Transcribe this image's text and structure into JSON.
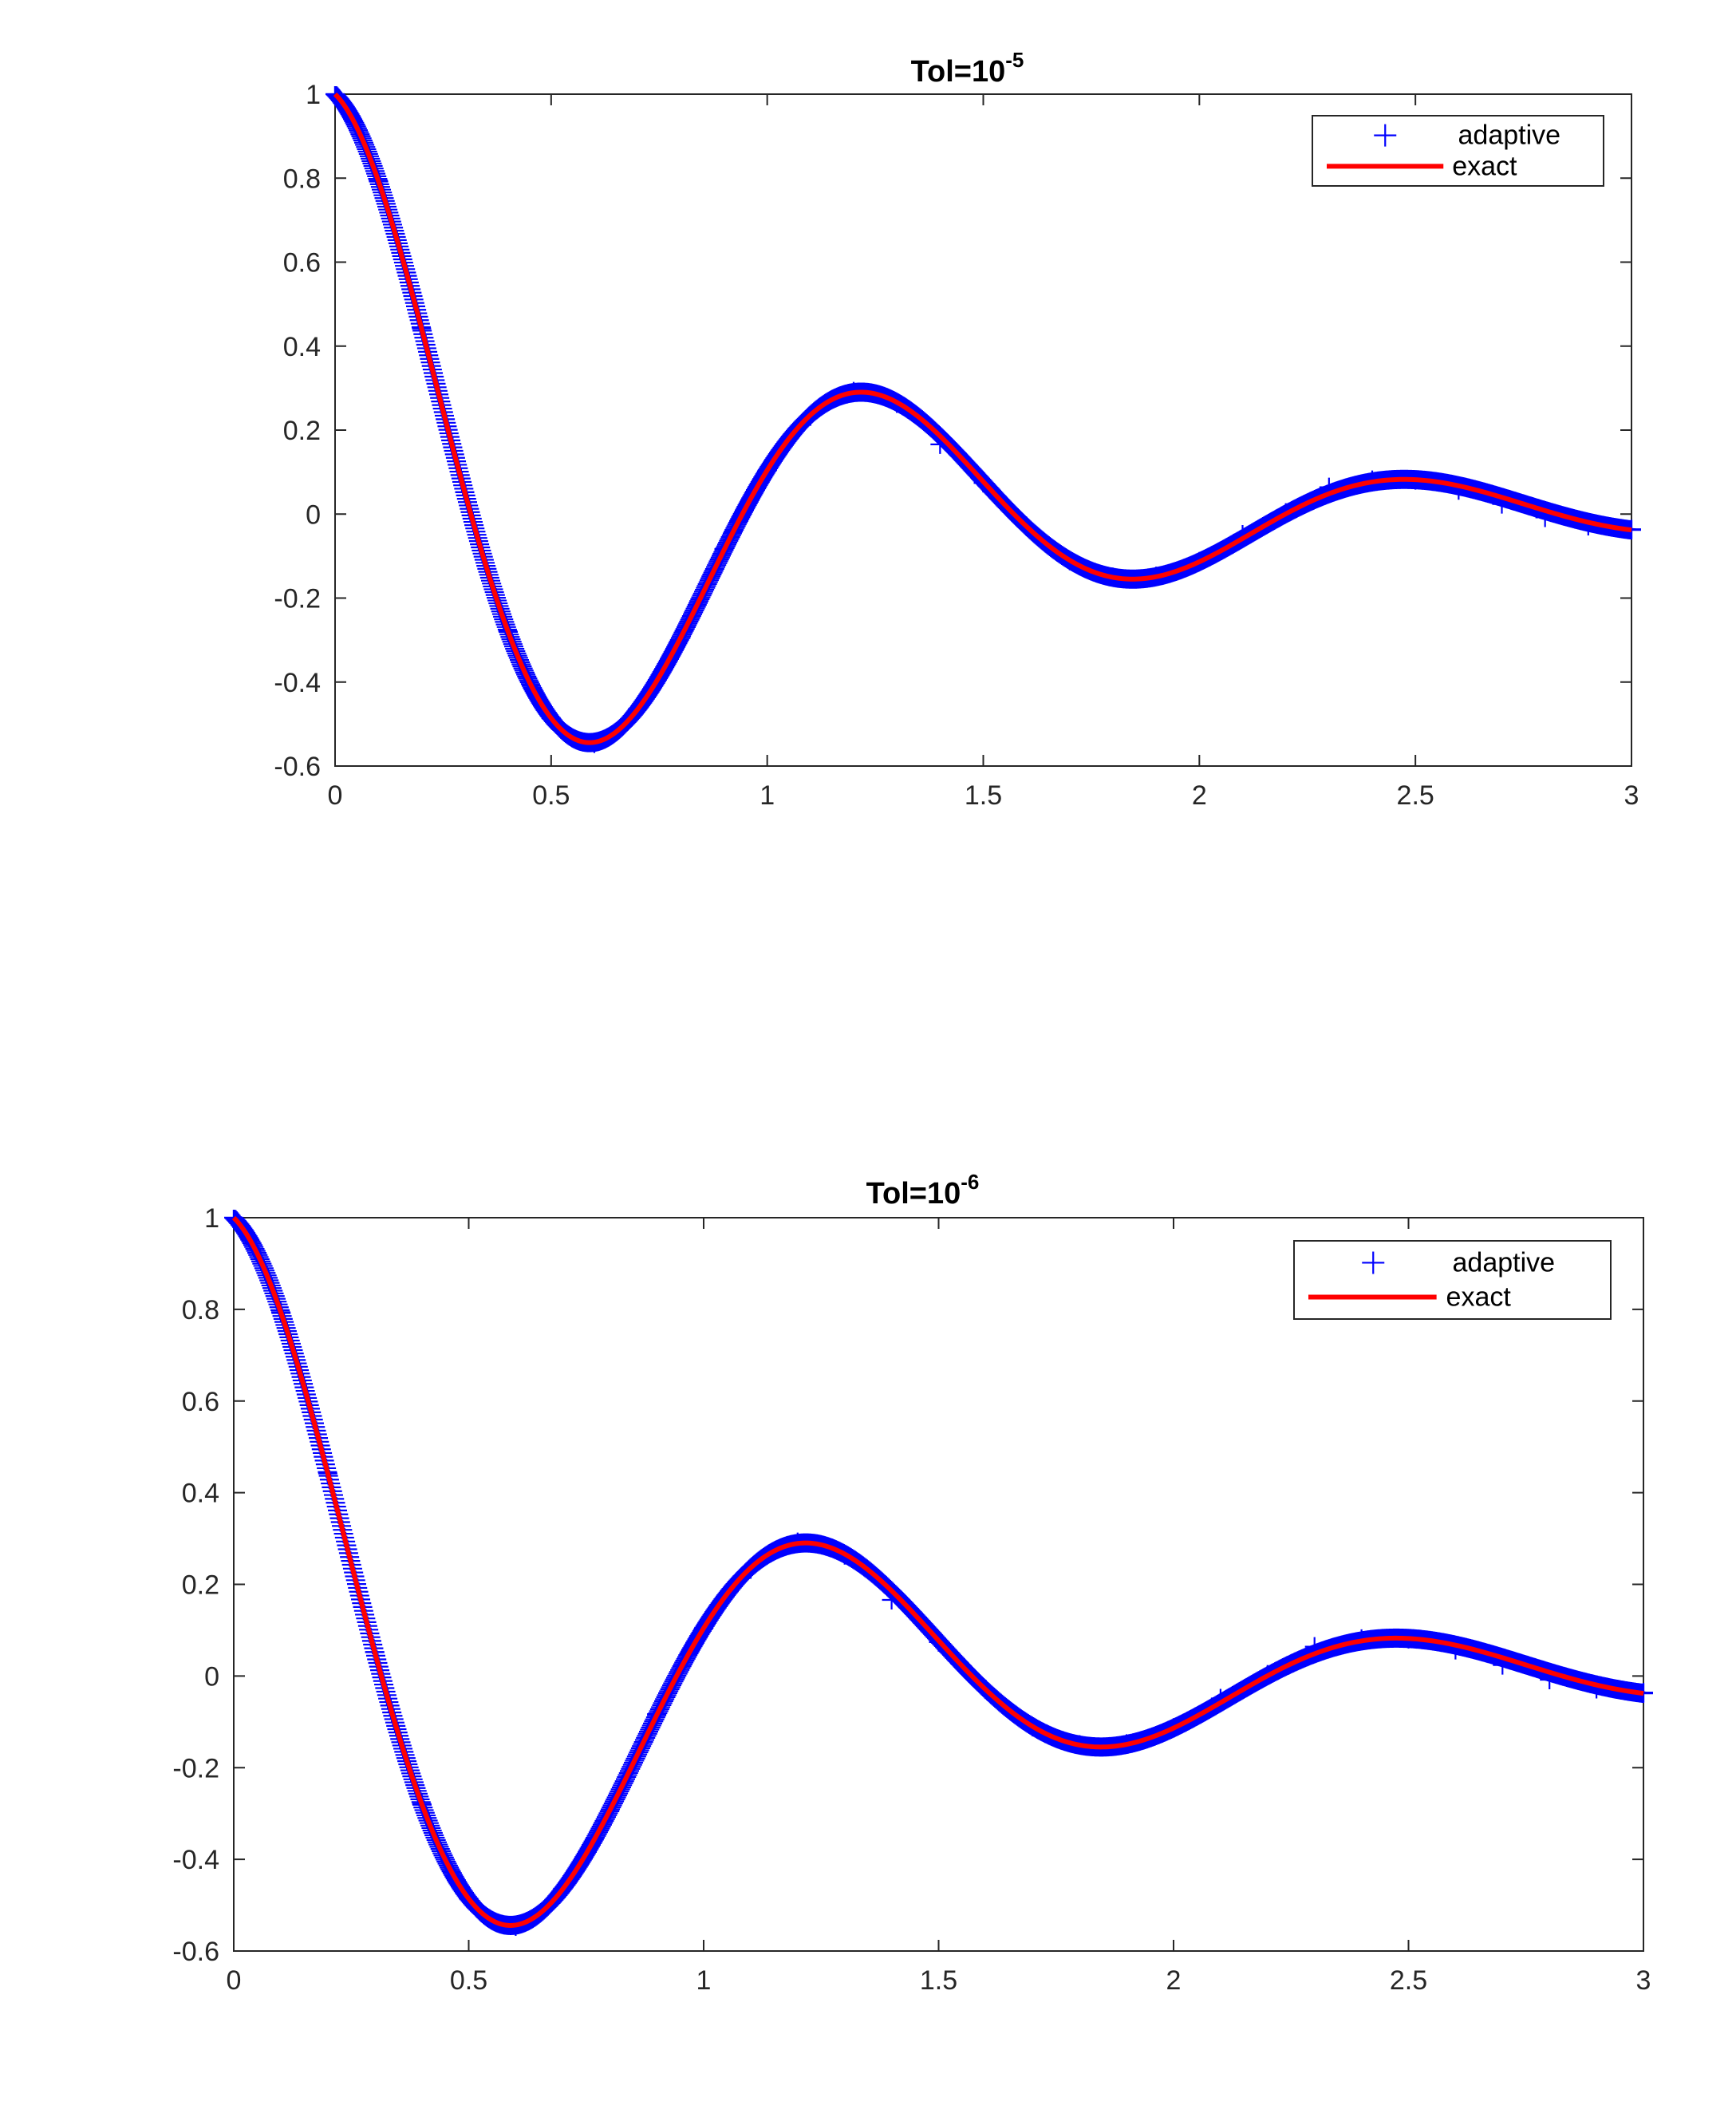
{
  "chart_data": [
    {
      "type": "line",
      "title": "Tol=10",
      "title_exponent": "-5",
      "xlabel": "",
      "ylabel": "",
      "xlim": [
        0,
        3
      ],
      "ylim": [
        -0.6,
        1
      ],
      "x_ticks": [
        "0",
        "0.5",
        "1",
        "1.5",
        "2",
        "2.5",
        "3"
      ],
      "y_ticks": [
        "-0.6",
        "-0.4",
        "-0.2",
        "0",
        "0.2",
        "0.4",
        "0.6",
        "0.8",
        "1"
      ],
      "grid": false,
      "legend_position": "top-right",
      "curve_model": "exp(-t)*cos(5t)",
      "series": [
        {
          "name": "adaptive",
          "style": "plus-markers",
          "color": "#0000ff",
          "x": [
            0,
            0.1,
            0.2,
            0.3,
            0.4,
            0.5,
            0.6,
            0.7,
            0.8,
            0.9,
            1.0,
            1.1,
            1.2,
            1.3,
            1.4,
            1.5,
            1.6,
            1.7,
            1.8,
            1.9,
            2.0,
            2.1,
            2.2,
            2.3,
            2.4,
            2.5,
            2.6,
            2.7,
            2.8,
            2.9,
            3.0
          ],
          "y": [
            1.0,
            0.794,
            0.442,
            0.052,
            -0.279,
            -0.486,
            -0.546,
            -0.464,
            -0.295,
            -0.083,
            0.104,
            0.233,
            0.292,
            0.264,
            0.166,
            0.074,
            -0.029,
            -0.111,
            -0.15,
            -0.148,
            -0.113,
            -0.049,
            0.003,
            0.064,
            0.081,
            0.081,
            0.057,
            0.024,
            -0.008,
            -0.028,
            -0.036
          ]
        },
        {
          "name": "exact",
          "style": "solid-line",
          "color": "#ff0000",
          "x": [
            0,
            0.1,
            0.2,
            0.3,
            0.4,
            0.5,
            0.6,
            0.7,
            0.8,
            0.9,
            1.0,
            1.1,
            1.2,
            1.3,
            1.4,
            1.5,
            1.6,
            1.7,
            1.8,
            1.9,
            2.0,
            2.1,
            2.2,
            2.3,
            2.4,
            2.5,
            2.6,
            2.7,
            2.8,
            2.9,
            3.0
          ],
          "y": [
            1.0,
            0.794,
            0.442,
            0.052,
            -0.279,
            -0.486,
            -0.546,
            -0.464,
            -0.295,
            -0.083,
            0.104,
            0.233,
            0.292,
            0.264,
            0.166,
            0.074,
            -0.029,
            -0.111,
            -0.15,
            -0.148,
            -0.113,
            -0.049,
            0.003,
            0.064,
            0.081,
            0.081,
            0.057,
            0.024,
            -0.008,
            -0.028,
            -0.036
          ]
        }
      ]
    },
    {
      "type": "line",
      "title": "Tol=10",
      "title_exponent": "-6",
      "xlabel": "",
      "ylabel": "",
      "xlim": [
        0,
        3
      ],
      "ylim": [
        -0.6,
        1
      ],
      "x_ticks": [
        "0",
        "0.5",
        "1",
        "1.5",
        "2",
        "2.5",
        "3"
      ],
      "y_ticks": [
        "-0.6",
        "-0.4",
        "-0.2",
        "0",
        "0.2",
        "0.4",
        "0.6",
        "0.8",
        "1"
      ],
      "grid": false,
      "legend_position": "top-right",
      "curve_model": "exp(-t)*cos(5t)",
      "series": [
        {
          "name": "adaptive",
          "style": "plus-markers",
          "color": "#0000ff",
          "x": [
            0,
            0.1,
            0.2,
            0.3,
            0.4,
            0.5,
            0.6,
            0.7,
            0.8,
            0.9,
            1.0,
            1.1,
            1.2,
            1.3,
            1.4,
            1.5,
            1.6,
            1.7,
            1.8,
            1.9,
            2.0,
            2.1,
            2.2,
            2.3,
            2.4,
            2.5,
            2.6,
            2.7,
            2.8,
            2.9,
            3.0
          ],
          "y": [
            1.0,
            0.794,
            0.442,
            0.052,
            -0.279,
            -0.486,
            -0.546,
            -0.464,
            -0.295,
            -0.083,
            0.104,
            0.233,
            0.292,
            0.264,
            0.166,
            0.074,
            -0.029,
            -0.111,
            -0.15,
            -0.148,
            -0.113,
            -0.049,
            0.003,
            0.064,
            0.081,
            0.081,
            0.057,
            0.024,
            -0.008,
            -0.028,
            -0.036
          ]
        },
        {
          "name": "exact",
          "style": "solid-line",
          "color": "#ff0000",
          "x": [
            0,
            0.1,
            0.2,
            0.3,
            0.4,
            0.5,
            0.6,
            0.7,
            0.8,
            0.9,
            1.0,
            1.1,
            1.2,
            1.3,
            1.4,
            1.5,
            1.6,
            1.7,
            1.8,
            1.9,
            2.0,
            2.1,
            2.2,
            2.3,
            2.4,
            2.5,
            2.6,
            2.7,
            2.8,
            2.9,
            3.0
          ],
          "y": [
            1.0,
            0.794,
            0.442,
            0.052,
            -0.279,
            -0.486,
            -0.546,
            -0.464,
            -0.295,
            -0.083,
            0.104,
            0.233,
            0.292,
            0.264,
            0.166,
            0.074,
            -0.029,
            -0.111,
            -0.15,
            -0.148,
            -0.113,
            -0.049,
            0.003,
            0.064,
            0.081,
            0.081,
            0.057,
            0.024,
            -0.008,
            -0.028,
            -0.036
          ]
        }
      ]
    }
  ]
}
